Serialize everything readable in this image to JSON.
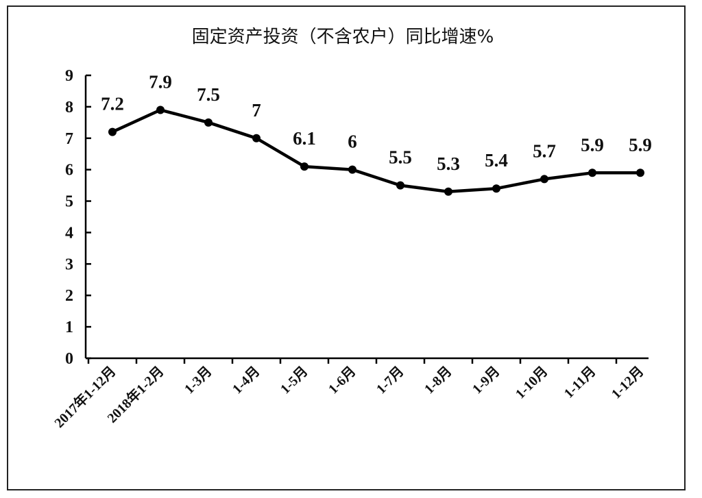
{
  "chart_data": {
    "type": "line",
    "title": "固定资产投资（不含农户）同比增速%",
    "categories": [
      "2017年1-12月",
      "2018年1-2月",
      "1-3月",
      "1-4月",
      "1-5月",
      "1-6月",
      "1-7月",
      "1-8月",
      "1-9月",
      "1-10月",
      "1-11月",
      "1-12月"
    ],
    "values": [
      7.2,
      7.9,
      7.5,
      7,
      6.1,
      6,
      5.5,
      5.3,
      5.4,
      5.7,
      5.9,
      5.9
    ],
    "data_labels": [
      "7.2",
      "7.9",
      "7.5",
      "7",
      "6.1",
      "6",
      "5.5",
      "5.3",
      "5.4",
      "5.7",
      "5.9",
      "5.9"
    ],
    "y_ticks": [
      "0",
      "1",
      "2",
      "3",
      "4",
      "5",
      "6",
      "7",
      "8",
      "9"
    ],
    "ylim": [
      0,
      9
    ],
    "xlabel": "",
    "ylabel": "",
    "grid": false,
    "line_color": "#000000"
  }
}
